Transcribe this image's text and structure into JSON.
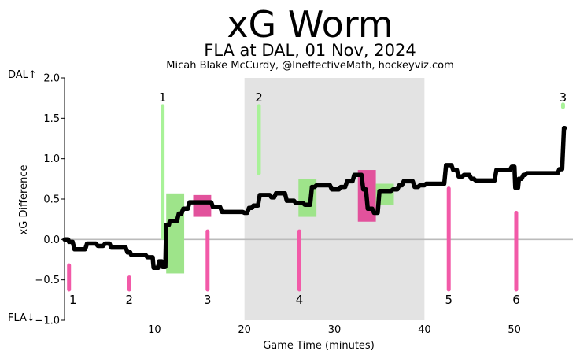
{
  "title": "xG Worm",
  "subtitle": "FLA at DAL, 01 Nov, 2024",
  "credit": "Micah Blake McCurdy, @IneffectiveMath, hockeyviz.com",
  "team_up": "DAL↑",
  "team_down": "FLA↓",
  "chart_data": {
    "type": "line",
    "title": "xG Worm",
    "xlabel": "Game Time (minutes)",
    "ylabel": "xG Difference",
    "xlim": [
      0,
      56.5
    ],
    "ylim": [
      -1.0,
      2.0
    ],
    "x_ticks": [
      10,
      20,
      30,
      40,
      50
    ],
    "y_ticks": [
      -1.0,
      -0.5,
      0.0,
      0.5,
      1.0,
      1.5,
      2.0
    ],
    "y_tick_labels": [
      "−1.0",
      "−0.5",
      "0.0",
      "0.5",
      "1.0",
      "1.5",
      "2.0"
    ],
    "grid": false,
    "shaded_period": [
      20,
      40
    ],
    "worm": [
      [
        0,
        0
      ],
      [
        0.4,
        0
      ],
      [
        0.5,
        -0.03
      ],
      [
        0.9,
        -0.03
      ],
      [
        1.1,
        -0.12
      ],
      [
        2.3,
        -0.12
      ],
      [
        2.5,
        -0.05
      ],
      [
        3.5,
        -0.05
      ],
      [
        3.7,
        -0.08
      ],
      [
        4.3,
        -0.08
      ],
      [
        4.5,
        -0.05
      ],
      [
        5.0,
        -0.05
      ],
      [
        5.2,
        -0.1
      ],
      [
        6.8,
        -0.1
      ],
      [
        7.0,
        -0.16
      ],
      [
        7.3,
        -0.16
      ],
      [
        7.4,
        -0.19
      ],
      [
        9.0,
        -0.19
      ],
      [
        9.2,
        -0.22
      ],
      [
        9.8,
        -0.22
      ],
      [
        9.9,
        -0.35
      ],
      [
        10.4,
        -0.35
      ],
      [
        10.5,
        -0.27
      ],
      [
        10.8,
        -0.27
      ],
      [
        10.9,
        -0.34
      ],
      [
        11.2,
        -0.34
      ],
      [
        11.3,
        0.18
      ],
      [
        11.6,
        0.18
      ],
      [
        11.7,
        0.23
      ],
      [
        12.5,
        0.23
      ],
      [
        12.7,
        0.32
      ],
      [
        13.0,
        0.32
      ],
      [
        13.2,
        0.38
      ],
      [
        13.7,
        0.38
      ],
      [
        13.9,
        0.46
      ],
      [
        16.3,
        0.46
      ],
      [
        16.5,
        0.4
      ],
      [
        17.3,
        0.4
      ],
      [
        17.5,
        0.34
      ],
      [
        19.8,
        0.34
      ],
      [
        20.0,
        0.33
      ],
      [
        20.3,
        0.33
      ],
      [
        20.5,
        0.39
      ],
      [
        20.8,
        0.39
      ],
      [
        21.0,
        0.42
      ],
      [
        21.5,
        0.42
      ],
      [
        21.7,
        0.55
      ],
      [
        22.8,
        0.55
      ],
      [
        23.0,
        0.52
      ],
      [
        23.3,
        0.52
      ],
      [
        23.5,
        0.57
      ],
      [
        24.5,
        0.57
      ],
      [
        24.7,
        0.48
      ],
      [
        25.5,
        0.48
      ],
      [
        25.7,
        0.45
      ],
      [
        26.5,
        0.45
      ],
      [
        26.7,
        0.43
      ],
      [
        27.3,
        0.43
      ],
      [
        27.5,
        0.65
      ],
      [
        27.8,
        0.65
      ],
      [
        28.0,
        0.67
      ],
      [
        29.5,
        0.67
      ],
      [
        29.7,
        0.62
      ],
      [
        30.5,
        0.62
      ],
      [
        30.7,
        0.65
      ],
      [
        31.2,
        0.65
      ],
      [
        31.4,
        0.72
      ],
      [
        32.0,
        0.72
      ],
      [
        32.2,
        0.8
      ],
      [
        33.0,
        0.8
      ],
      [
        33.2,
        0.62
      ],
      [
        33.5,
        0.62
      ],
      [
        33.7,
        0.38
      ],
      [
        34.2,
        0.38
      ],
      [
        34.4,
        0.33
      ],
      [
        34.8,
        0.33
      ],
      [
        35.0,
        0.6
      ],
      [
        36.3,
        0.6
      ],
      [
        36.5,
        0.62
      ],
      [
        37.0,
        0.62
      ],
      [
        37.2,
        0.67
      ],
      [
        37.5,
        0.67
      ],
      [
        37.7,
        0.72
      ],
      [
        38.7,
        0.72
      ],
      [
        38.9,
        0.65
      ],
      [
        39.3,
        0.65
      ],
      [
        39.5,
        0.67
      ],
      [
        40.0,
        0.67
      ],
      [
        40.2,
        0.69
      ],
      [
        42.2,
        0.69
      ],
      [
        42.4,
        0.92
      ],
      [
        43.0,
        0.92
      ],
      [
        43.2,
        0.86
      ],
      [
        43.6,
        0.86
      ],
      [
        43.8,
        0.78
      ],
      [
        44.2,
        0.78
      ],
      [
        44.4,
        0.8
      ],
      [
        45.0,
        0.8
      ],
      [
        45.2,
        0.75
      ],
      [
        45.5,
        0.75
      ],
      [
        45.7,
        0.73
      ],
      [
        47.8,
        0.73
      ],
      [
        48.0,
        0.86
      ],
      [
        49.5,
        0.86
      ],
      [
        49.7,
        0.9
      ],
      [
        50.0,
        0.9
      ],
      [
        50.1,
        0.64
      ],
      [
        50.4,
        0.64
      ],
      [
        50.5,
        0.75
      ],
      [
        50.8,
        0.75
      ],
      [
        51.0,
        0.8
      ],
      [
        51.2,
        0.8
      ],
      [
        51.4,
        0.82
      ],
      [
        54.8,
        0.82
      ],
      [
        55.0,
        0.87
      ],
      [
        55.3,
        0.87
      ],
      [
        55.5,
        1.38
      ],
      [
        55.6,
        1.38
      ]
    ],
    "goals": [
      {
        "label": "1",
        "team": "FLA",
        "x": 0.5
      },
      {
        "label": "2",
        "team": "FLA",
        "x": 7.2
      },
      {
        "label": "3",
        "team": "FLA",
        "x": 15.9
      },
      {
        "label": "4",
        "team": "FLA",
        "x": 26.1
      },
      {
        "label": "5",
        "team": "FLA",
        "x": 42.7
      },
      {
        "label": "6",
        "team": "FLA",
        "x": 50.2
      },
      {
        "label": "1",
        "team": "DAL",
        "x": 10.9
      },
      {
        "label": "2",
        "team": "DAL",
        "x": 21.6
      },
      {
        "label": "3",
        "team": "DAL",
        "x": 55.4
      }
    ],
    "goal_bars": [
      {
        "team": "FLA",
        "x": 0.5,
        "y0": -0.62,
        "y1": -0.32
      },
      {
        "team": "FLA",
        "x": 7.2,
        "y0": -0.62,
        "y1": -0.47
      },
      {
        "team": "FLA",
        "x": 15.9,
        "y0": -0.62,
        "y1": 0.1
      },
      {
        "team": "FLA",
        "x": 26.1,
        "y0": -0.62,
        "y1": 0.1
      },
      {
        "team": "FLA",
        "x": 42.7,
        "y0": -0.62,
        "y1": 0.63
      },
      {
        "team": "FLA",
        "x": 50.2,
        "y0": -0.62,
        "y1": 0.33
      },
      {
        "team": "DAL",
        "x": 10.9,
        "y0": 0.02,
        "y1": 1.65
      },
      {
        "team": "DAL",
        "x": 21.6,
        "y0": 0.82,
        "y1": 1.65
      },
      {
        "team": "DAL",
        "x": 55.4,
        "y0": 1.64,
        "y1": 1.67
      }
    ],
    "penalties": [
      {
        "team": "DAL",
        "x0": 11.3,
        "x1": 13.3,
        "y0": -0.42,
        "y1": 0.57
      },
      {
        "team": "FLA",
        "x0": 14.3,
        "x1": 16.3,
        "y0": 0.28,
        "y1": 0.55
      },
      {
        "team": "DAL",
        "x0": 26.0,
        "x1": 28.0,
        "y0": 0.28,
        "y1": 0.75
      },
      {
        "team": "FLA",
        "x0": 32.6,
        "x1": 34.6,
        "y0": 0.22,
        "y1": 0.86
      },
      {
        "team": "DAL",
        "x0": 34.6,
        "x1": 36.6,
        "y0": 0.43,
        "y1": 0.69
      }
    ],
    "colors": {
      "FLA": "#f25aa8",
      "DAL": "#a8f298",
      "FLA_penalty": "#e2529c",
      "DAL_penalty": "#9ee48a",
      "worm": "#000000",
      "shade": "#e3e3e3",
      "zero_line": "#bbbbbb"
    }
  }
}
